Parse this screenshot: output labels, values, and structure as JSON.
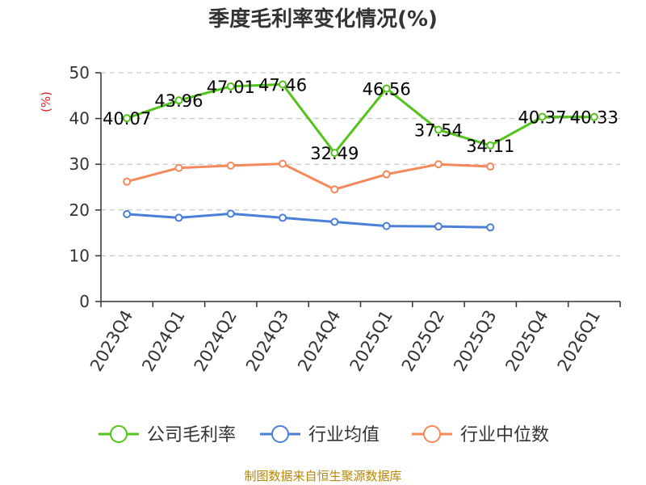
{
  "chart_data": {
    "type": "line",
    "title": "季度毛利率变化情况(%)",
    "unit_label": "(%)",
    "categories": [
      "2023Q4",
      "2024Q1",
      "2024Q2",
      "2024Q3",
      "2024Q4",
      "2025Q1",
      "2025Q2",
      "2025Q3",
      "2025Q4",
      "2026Q1"
    ],
    "ylim": [
      0,
      50
    ],
    "yticks": [
      0,
      10,
      20,
      30,
      40,
      50
    ],
    "grid": true,
    "legend_position": "bottom",
    "series": [
      {
        "name": "公司毛利率",
        "color": "#52c41a",
        "values": [
          40.07,
          43.96,
          47.01,
          47.46,
          32.49,
          46.56,
          37.54,
          34.11,
          40.37,
          40.33
        ],
        "labels": [
          "40.07",
          "43.96",
          "47.01",
          "47.46",
          "32.49",
          "46.56",
          "37.54",
          "34.11",
          "40.37",
          "40.33"
        ]
      },
      {
        "name": "行业均值",
        "color": "#4a7fd8",
        "values": [
          19.1,
          18.3,
          19.2,
          18.3,
          17.4,
          16.5,
          16.4,
          16.2,
          null,
          null
        ]
      },
      {
        "name": "行业中位数",
        "color": "#f5895a",
        "values": [
          26.2,
          29.2,
          29.7,
          30.1,
          24.5,
          27.8,
          30.0,
          29.5,
          null,
          null
        ]
      }
    ]
  },
  "source_text": "制图数据来自恒生聚源数据库"
}
